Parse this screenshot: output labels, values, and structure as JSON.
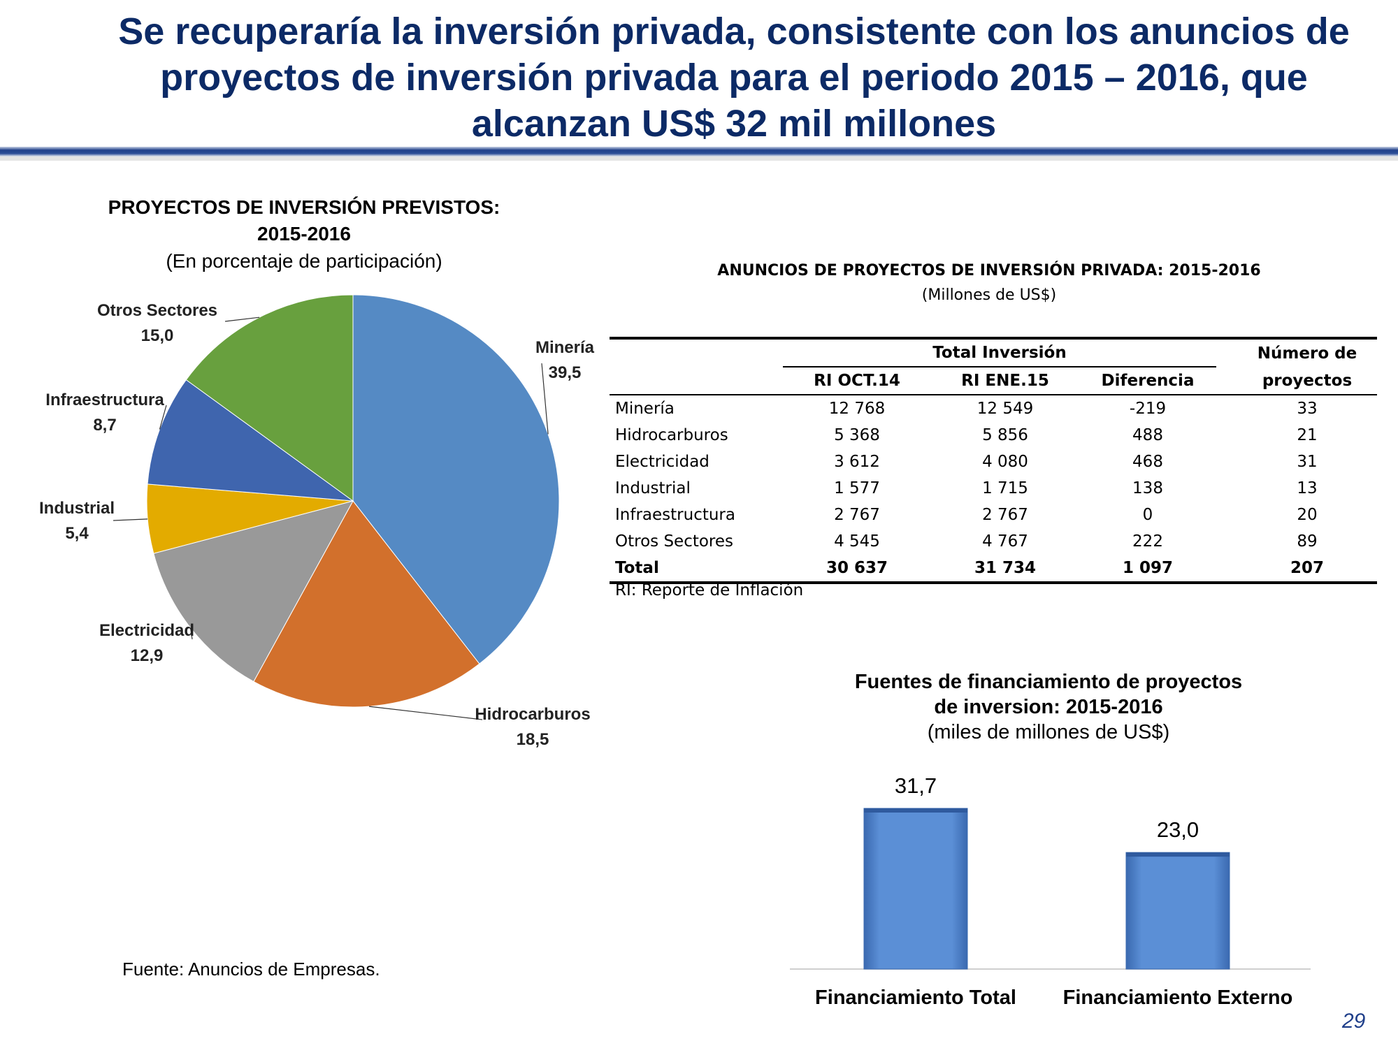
{
  "slide": {
    "title": "Se recuperaría la inversión privada, consistente con los anuncios de proyectos de inversión privada para el periodo 2015 – 2016, que alcanzan US$ 32 mil millones",
    "source": "Fuente: Anuncios de Empresas.",
    "page_number": "29",
    "rule_color": "#1f3f8a"
  },
  "pie": {
    "title_line1": "PROYECTOS DE INVERSIÓN PREVISTOS:",
    "title_line2": "2015-2016",
    "subtitle": "(En porcentaje de participación)"
  },
  "table": {
    "title": "ANUNCIOS DE PROYECTOS DE INVERSIÓN PRIVADA: 2015-2016",
    "subtitle": "(Millones de US$)",
    "group_header": "Total Inversión",
    "count_header_line1": "Número de",
    "count_header_line2": "proyectos",
    "columns": [
      "RI OCT.14",
      "RI ENE.15",
      "Diferencia"
    ],
    "rows": [
      {
        "name": "Minería",
        "oct": "12 768",
        "ene": "12 549",
        "diff": "-219",
        "count": "33"
      },
      {
        "name": "Hidrocarburos",
        "oct": "5 368",
        "ene": "5 856",
        "diff": "488",
        "count": "21"
      },
      {
        "name": "Electricidad",
        "oct": "3 612",
        "ene": "4 080",
        "diff": "468",
        "count": "31"
      },
      {
        "name": "Industrial",
        "oct": "1 577",
        "ene": "1 715",
        "diff": "138",
        "count": "13"
      },
      {
        "name": "Infraestructura",
        "oct": "2 767",
        "ene": "2 767",
        "diff": "0",
        "count": "20"
      },
      {
        "name": "Otros Sectores",
        "oct": "4 545",
        "ene": "4 767",
        "diff": "222",
        "count": "89"
      }
    ],
    "total": {
      "name": "Total",
      "oct": "30 637",
      "ene": "31 734",
      "diff": "1 097",
      "count": "207"
    },
    "note": "RI: Reporte de Inflación"
  },
  "bar": {
    "title_line1": "Fuentes de financiamiento de proyectos",
    "title_line2": "de inversion: 2015-2016",
    "subtitle": "(miles de millones de US$)"
  },
  "chart_data": [
    {
      "type": "pie",
      "title": "PROYECTOS DE INVERSIÓN PREVISTOS: 2015-2016",
      "subtitle": "(En porcentaje de participación)",
      "categories": [
        "Minería",
        "Hidrocarburos",
        "Electricidad",
        "Industrial",
        "Infraestructura",
        "Otros Sectores"
      ],
      "values": [
        39.5,
        18.5,
        12.9,
        5.4,
        8.7,
        15.0
      ],
      "value_labels": [
        "39,5",
        "18,5",
        "12,9",
        "5,4",
        "8,7",
        "15,0"
      ],
      "colors": [
        "#558ac4",
        "#d2702c",
        "#999999",
        "#e3ab00",
        "#3f65ae",
        "#68a03e"
      ],
      "start_angle": "12 o'clock, clockwise"
    },
    {
      "type": "bar",
      "title": "Fuentes de financiamiento de proyectos de inversion: 2015-2016",
      "subtitle": "(miles de millones de US$)",
      "categories": [
        "Financiamiento Total",
        "Financiamiento Externo"
      ],
      "values": [
        31.7,
        23.0
      ],
      "value_labels": [
        "31,7",
        "23,0"
      ],
      "color": "#4f81c9",
      "ylim": [
        0,
        31.7
      ]
    }
  ]
}
